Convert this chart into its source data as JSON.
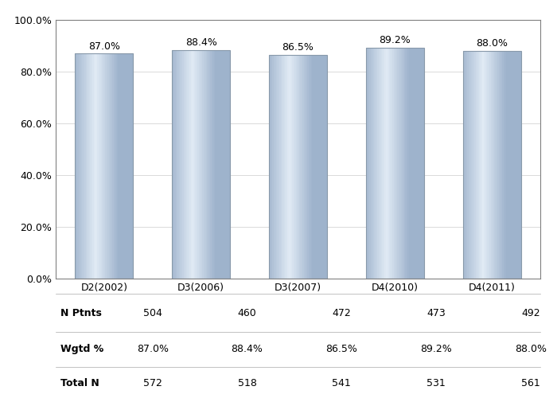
{
  "categories": [
    "D2(2002)",
    "D3(2006)",
    "D3(2007)",
    "D4(2010)",
    "D4(2011)"
  ],
  "values": [
    87.0,
    88.4,
    86.5,
    89.2,
    88.0
  ],
  "n_ptnts": [
    504,
    460,
    472,
    473,
    492
  ],
  "wgtd_pct": [
    "87.0%",
    "88.4%",
    "86.5%",
    "89.2%",
    "88.0%"
  ],
  "total_n": [
    572,
    518,
    541,
    531,
    561
  ],
  "ylim": [
    0,
    100
  ],
  "yticks": [
    0,
    20,
    40,
    60,
    80,
    100
  ],
  "ytick_labels": [
    "0.0%",
    "20.0%",
    "40.0%",
    "60.0%",
    "80.0%",
    "100.0%"
  ],
  "label_fontsize": 9,
  "tick_fontsize": 9,
  "table_fontsize": 9,
  "row_labels": [
    "N Ptnts",
    "Wgtd %",
    "Total N"
  ],
  "background_color": "#ffffff",
  "border_color": "#808080"
}
